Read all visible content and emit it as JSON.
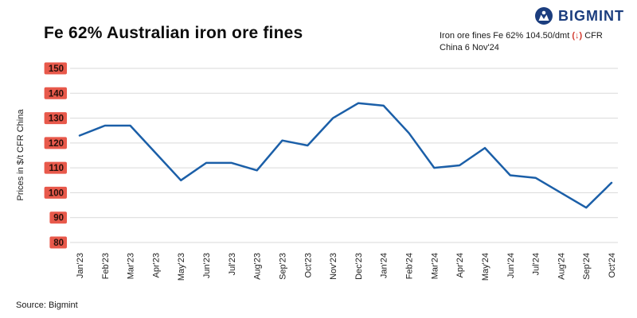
{
  "header": {
    "title": "Fe 62% Australian iron ore fines",
    "annotation": {
      "line1_prefix": "Iron ore fines Fe 62% 104.50/dmt ",
      "change": "(↓)",
      "line1_suffix": " CFR",
      "line2": "China 6 Nov'24"
    },
    "logo_text": "BIGMINT"
  },
  "footer": {
    "source": "Source: Bigmint"
  },
  "colors": {
    "line": "#1b5fa8",
    "grid": "#d9d9d9",
    "axis_text": "#222222",
    "ytick_bg": "#e8594b",
    "ytick_text": "#29100b",
    "brand_navy": "#1b3d7e",
    "change_red": "#d43a2f"
  },
  "chart_data": {
    "type": "line",
    "title": "Fe 62% Australian iron ore fines",
    "xlabel": "",
    "ylabel": "Prices in $/t CFR China",
    "ylim": [
      80,
      150
    ],
    "ytick_step": 10,
    "grid": true,
    "legend": "none",
    "line_color": "#1b5fa8",
    "categories": [
      "Jan'23",
      "Feb'23",
      "Mar'23",
      "Apr'23",
      "May'23",
      "Jun'23",
      "Jul'23",
      "Aug'23",
      "Sep'23",
      "Oct'23",
      "Nov'23",
      "Dec'23",
      "Jan'24",
      "Feb'24",
      "Mar'24",
      "Apr'24",
      "May'24",
      "Jun'24",
      "Jul'24",
      "Aug'24",
      "Sep'24",
      "Oct'24"
    ],
    "values": [
      123,
      127,
      127,
      116,
      105,
      112,
      112,
      109,
      121,
      119,
      130,
      136,
      135,
      124,
      110,
      111,
      118,
      107,
      106,
      100,
      94,
      104
    ]
  }
}
